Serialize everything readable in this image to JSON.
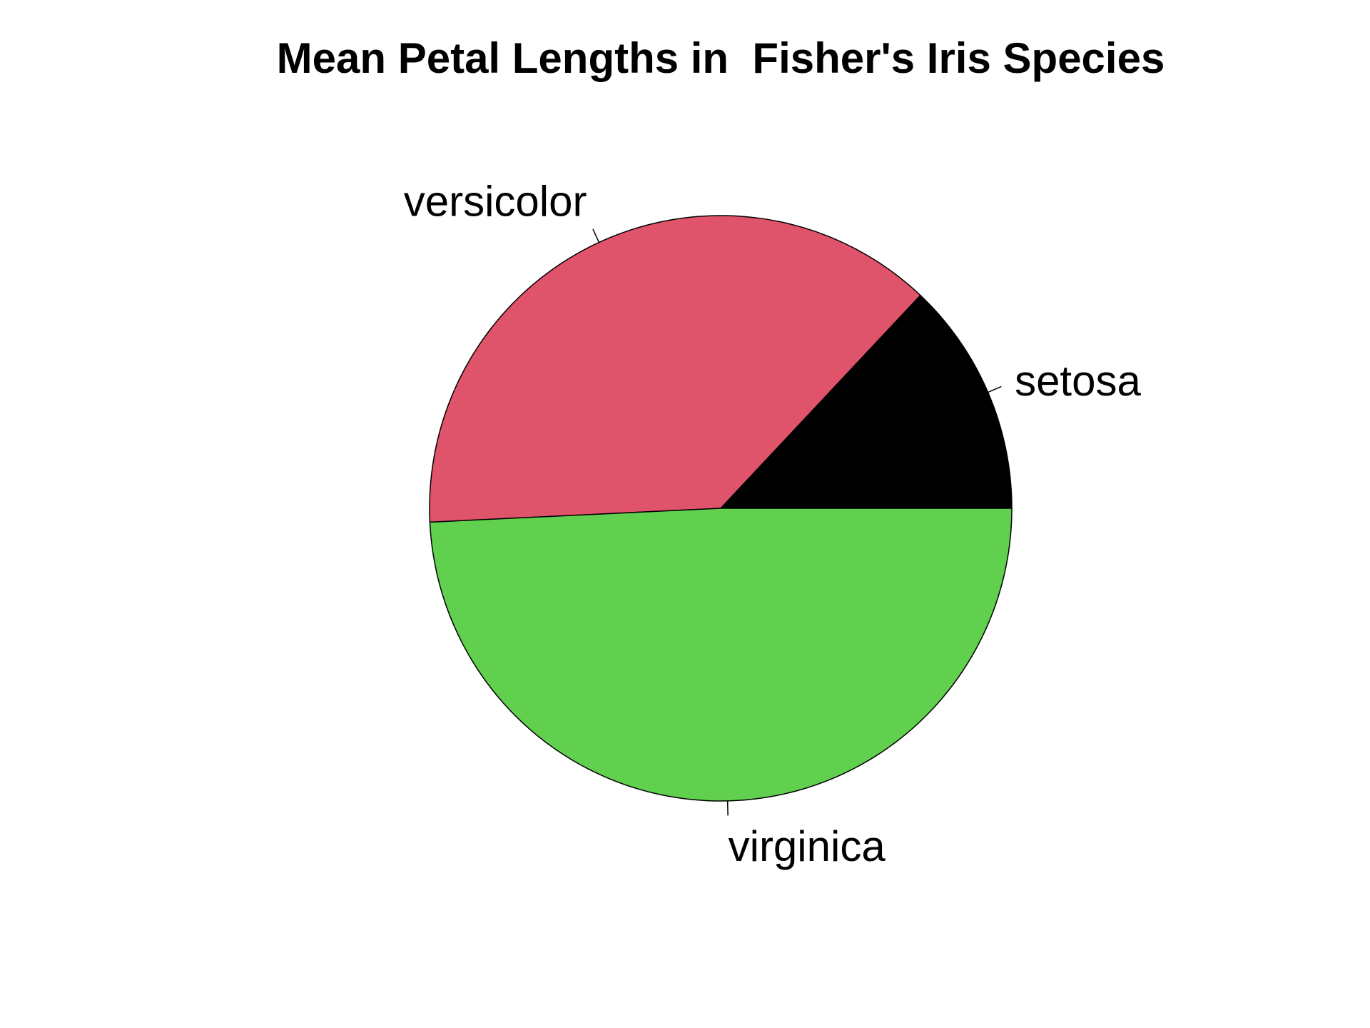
{
  "chart_data": {
    "type": "pie",
    "title": "Mean Petal Lengths in  Fisher's Iris Species",
    "categories": [
      "setosa",
      "versicolor",
      "virginica"
    ],
    "values": [
      1.462,
      4.26,
      5.552
    ],
    "colors": [
      "#000000",
      "#DF536B",
      "#61D04F"
    ],
    "start_angle_deg": 0,
    "direction": "counterclockwise"
  }
}
